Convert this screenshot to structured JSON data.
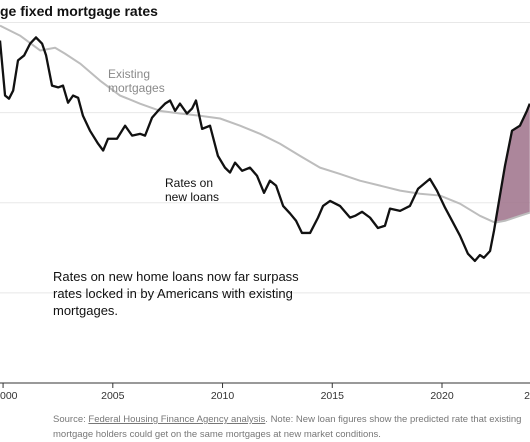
{
  "title": "ge fixed mortgage rates",
  "chart_data": {
    "type": "line",
    "xlim": [
      1999.86,
      2024.01
    ],
    "xticks": [
      {
        "value": 2000,
        "label": "000"
      },
      2005,
      2010,
      2015,
      2020,
      {
        "value": 2025,
        "label": "2"
      }
    ],
    "ylim": [
      0,
      8.5
    ],
    "yticks": [
      2,
      4,
      6,
      8
    ],
    "grid": true,
    "gap_color": "#9e7189",
    "series": [
      {
        "name": "Existing mortgages",
        "color": "#bdbdbd",
        "x": [
          1999.86,
          2000.77,
          2001.69,
          2002.37,
          2002.82,
          2003.51,
          2004.42,
          2005.33,
          2006.24,
          2007.15,
          2008.06,
          2008.97,
          2009.89,
          2010.8,
          2011.71,
          2012.62,
          2013.53,
          2014.44,
          2015.35,
          2016.26,
          2017.18,
          2018.09,
          2019.0,
          2019.91,
          2020.82,
          2021.73,
          2022.41,
          2022.87,
          2023.55,
          2024.0
        ],
        "values": [
          7.93,
          7.71,
          7.38,
          7.44,
          7.31,
          7.09,
          6.71,
          6.38,
          6.2,
          6.04,
          5.98,
          5.93,
          5.87,
          5.71,
          5.53,
          5.31,
          5.04,
          4.78,
          4.64,
          4.49,
          4.38,
          4.27,
          4.2,
          4.16,
          3.98,
          3.71,
          3.56,
          3.6,
          3.71,
          3.78
        ]
      },
      {
        "name": "Rates on new loans",
        "color": "#111111",
        "x": [
          1999.86,
          2000.09,
          2000.27,
          2000.46,
          2000.68,
          2000.96,
          2001.23,
          2001.5,
          2001.78,
          2001.96,
          2002.23,
          2002.51,
          2002.73,
          2002.96,
          2003.19,
          2003.42,
          2003.64,
          2003.96,
          2004.33,
          2004.56,
          2004.78,
          2005.19,
          2005.56,
          2005.88,
          2006.24,
          2006.47,
          2006.79,
          2007.06,
          2007.38,
          2007.61,
          2007.84,
          2008.06,
          2008.38,
          2008.61,
          2008.79,
          2009.07,
          2009.43,
          2009.79,
          2010.11,
          2010.34,
          2010.57,
          2010.89,
          2011.25,
          2011.57,
          2011.89,
          2012.16,
          2012.44,
          2012.76,
          2013.08,
          2013.35,
          2013.62,
          2013.99,
          2014.35,
          2014.58,
          2014.9,
          2015.35,
          2015.81,
          2016.04,
          2016.36,
          2016.72,
          2017.08,
          2017.4,
          2017.63,
          2018.09,
          2018.54,
          2018.91,
          2019.45,
          2019.77,
          2020.14,
          2020.46,
          2020.82,
          2021.18,
          2021.5,
          2021.73,
          2021.91,
          2022.19,
          2022.37,
          2022.64,
          2022.87,
          2023.19,
          2023.55,
          2023.87,
          2024.0
        ],
        "values": [
          7.6,
          6.38,
          6.31,
          6.49,
          7.16,
          7.27,
          7.53,
          7.67,
          7.53,
          7.27,
          6.6,
          6.56,
          6.6,
          6.22,
          6.38,
          6.33,
          5.93,
          5.6,
          5.31,
          5.16,
          5.42,
          5.42,
          5.71,
          5.49,
          5.53,
          5.49,
          5.89,
          6.04,
          6.2,
          6.27,
          6.04,
          6.2,
          5.98,
          6.09,
          6.27,
          5.64,
          5.71,
          5.04,
          4.78,
          4.67,
          4.89,
          4.71,
          4.78,
          4.6,
          4.22,
          4.49,
          4.38,
          3.93,
          3.76,
          3.6,
          3.33,
          3.33,
          3.67,
          3.93,
          4.04,
          3.93,
          3.67,
          3.71,
          3.8,
          3.67,
          3.44,
          3.49,
          3.87,
          3.82,
          3.93,
          4.31,
          4.53,
          4.27,
          3.89,
          3.6,
          3.27,
          2.87,
          2.71,
          2.84,
          2.78,
          2.93,
          3.38,
          4.16,
          4.82,
          5.6,
          5.71,
          6.04,
          6.2
        ]
      }
    ],
    "annotation": "Rates on new home loans now far surpass rates locked in by Americans with existing mortgages."
  },
  "footer": {
    "source_label": "Source:",
    "source_link": "Federal Housing Finance Agency analysis",
    "note": ". Note: New loan figures show the predicted rate that existing mortgage holders could get on the same mortgages at new market conditions."
  }
}
